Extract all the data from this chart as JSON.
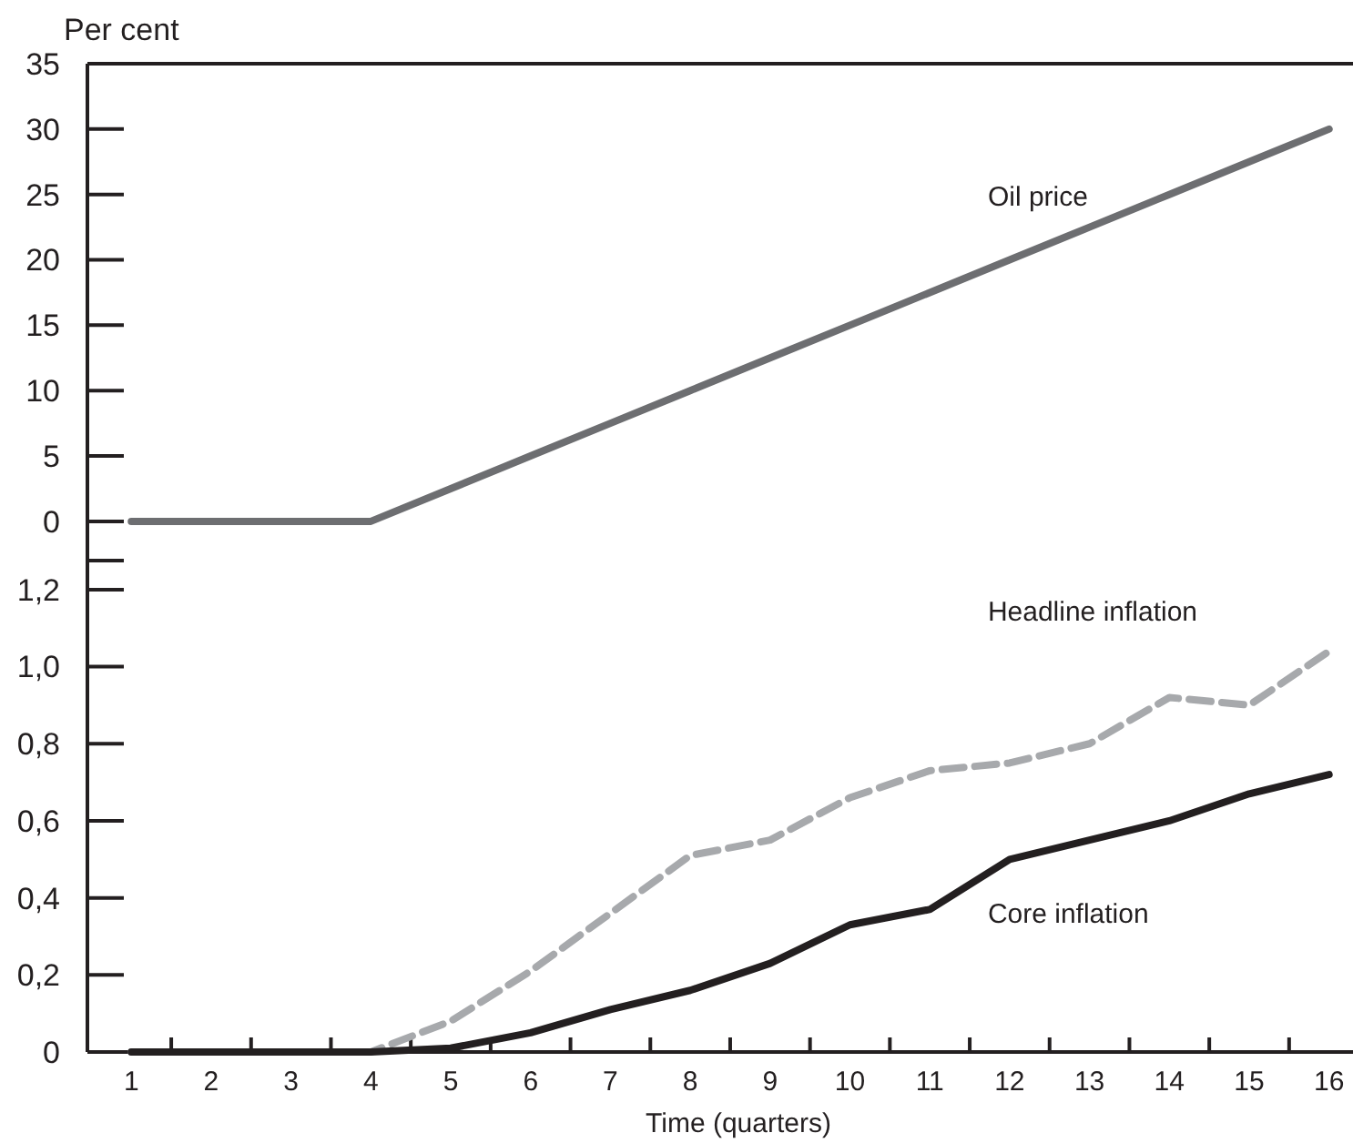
{
  "chart_data": [
    {
      "type": "line",
      "ylabel": "Per cent",
      "x": [
        1,
        2,
        3,
        4,
        5,
        6,
        7,
        8,
        9,
        10,
        11,
        12,
        13,
        14,
        15,
        16
      ],
      "xlim": [
        0.45,
        16.3
      ],
      "ylim": [
        -3,
        35
      ],
      "yticks": [
        0,
        5,
        10,
        15,
        20,
        25,
        30,
        35
      ],
      "tick_labels": "y",
      "grid": false,
      "series": [
        {
          "name": "Oil price",
          "color": "#6d6e71",
          "line_style": "solid",
          "values": [
            0,
            0,
            0,
            0,
            2.5,
            5,
            7.5,
            10,
            12.5,
            15,
            17.5,
            20,
            22.5,
            25,
            27.5,
            30
          ]
        }
      ]
    },
    {
      "type": "line",
      "xlabel": "Time (quarters)",
      "x": [
        1,
        2,
        3,
        4,
        5,
        6,
        7,
        8,
        9,
        10,
        11,
        12,
        13,
        14,
        15,
        16
      ],
      "xlim": [
        0.45,
        16.3
      ],
      "xticks": [
        1,
        {
          "value": 1.5,
          "label": null
        },
        2,
        {
          "value": 2.5,
          "label": null
        },
        3,
        {
          "value": 3.5,
          "label": null
        },
        4,
        {
          "value": 4.5,
          "label": null
        },
        5,
        {
          "value": 5.5,
          "label": null
        },
        6,
        {
          "value": 6.5,
          "label": null
        },
        7,
        {
          "value": 7.5,
          "label": null
        },
        8,
        {
          "value": 8.5,
          "label": null
        },
        9,
        {
          "value": 9.5,
          "label": null
        },
        10,
        {
          "value": 10.5,
          "label": null
        },
        11,
        {
          "value": 11.5,
          "label": null
        },
        12,
        {
          "value": 12.5,
          "label": null
        },
        13,
        {
          "value": 13.5,
          "label": null
        },
        14,
        {
          "value": 14.5,
          "label": null
        },
        15,
        {
          "value": 15.5,
          "label": null
        },
        16
      ],
      "ylim": [
        0,
        1.28
      ],
      "yticks": [
        0,
        {
          "value": 0.2,
          "label": "0,2"
        },
        {
          "value": 0.4,
          "label": "0,4"
        },
        {
          "value": 0.6,
          "label": "0,6"
        },
        {
          "value": 0.8,
          "label": "0,8"
        },
        {
          "value": 1.0,
          "label": "1,0"
        },
        {
          "value": 1.2,
          "label": "1,2"
        }
      ],
      "grid": false,
      "series": [
        {
          "name": "Headline inflation",
          "color": "#a7a9ac",
          "line_style": "dashed",
          "values": [
            0,
            0,
            0,
            0,
            0.08,
            0.21,
            0.36,
            0.51,
            0.55,
            0.66,
            0.73,
            0.75,
            0.8,
            0.92,
            0.9,
            1.04
          ]
        },
        {
          "name": "Core inflation",
          "color": "#231f20",
          "line_style": "solid",
          "values": [
            0,
            0,
            0,
            0,
            0.01,
            0.05,
            0.11,
            0.16,
            0.23,
            0.33,
            0.37,
            0.5,
            0.55,
            0.6,
            0.67,
            0.72
          ]
        }
      ]
    }
  ]
}
